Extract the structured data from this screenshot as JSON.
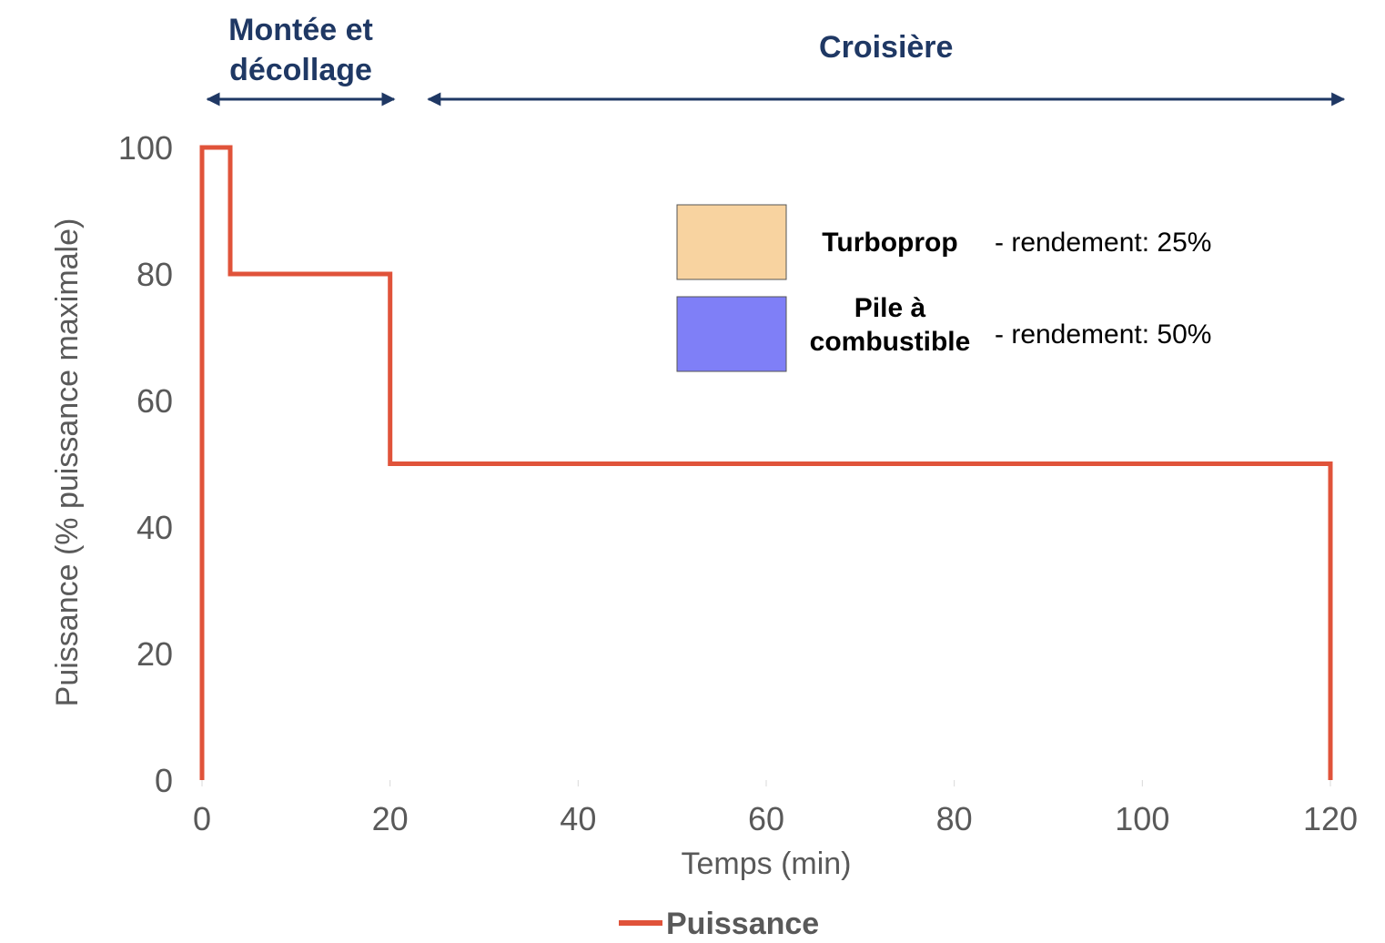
{
  "chart_data": {
    "type": "line",
    "step": true,
    "xlabel": "Temps (min)",
    "ylabel": "Puissance (% puissance maximale)",
    "xlim": [
      0,
      120
    ],
    "ylim": [
      0,
      100
    ],
    "x_ticks": [
      "0",
      "20",
      "40",
      "60",
      "80",
      "100",
      "120"
    ],
    "y_ticks": [
      "0",
      "20",
      "40",
      "60",
      "80",
      "100"
    ],
    "grid": false,
    "series": [
      {
        "name": "Puissance",
        "color": "#e0533a",
        "points": [
          {
            "x": 0,
            "y": 0
          },
          {
            "x": 0,
            "y": 100
          },
          {
            "x": 3,
            "y": 100
          },
          {
            "x": 3,
            "y": 80
          },
          {
            "x": 20,
            "y": 80
          },
          {
            "x": 20,
            "y": 50
          },
          {
            "x": 120,
            "y": 50
          },
          {
            "x": 120,
            "y": 0
          }
        ]
      }
    ],
    "legend_position": "bottom-center"
  },
  "phases": [
    {
      "label_lines": [
        "Montée et",
        "décollage"
      ],
      "x_start": 0,
      "x_end": 21
    },
    {
      "label_lines": [
        "Croisière"
      ],
      "x_start": 23.5,
      "x_end": 122
    }
  ],
  "phase_color": "#1f3864",
  "source_legend": [
    {
      "name_lines": [
        "Turboprop"
      ],
      "description": "- rendement: 25%",
      "color": "#f8d3a0"
    },
    {
      "name_lines": [
        "Pile à",
        "combustible"
      ],
      "description": "- rendement: 50%",
      "color": "#7f7ff7"
    }
  ]
}
